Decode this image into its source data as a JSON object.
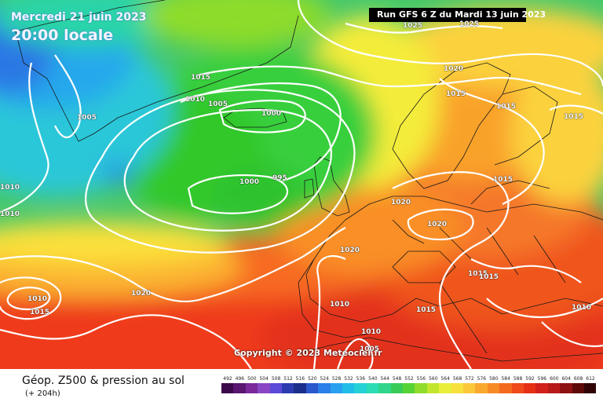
{
  "header": {
    "date": "Mercredi 21 juin 2023",
    "time": "20:00 locale",
    "run": "Run GFS 6 Z du Mardi 13 juin 2023"
  },
  "copyright": "Copyright © 2023 Meteociel.fr",
  "footer": {
    "title": "Géop. Z500 & pression au sol",
    "subtitle": "(+ 204h)"
  },
  "legend": {
    "ticks": [
      "492",
      "496",
      "500",
      "504",
      "508",
      "512",
      "516",
      "520",
      "524",
      "528",
      "532",
      "536",
      "540",
      "544",
      "548",
      "552",
      "556",
      "560",
      "564",
      "568",
      "572",
      "576",
      "580",
      "584",
      "588",
      "592",
      "596",
      "600",
      "604",
      "608",
      "612"
    ],
    "colors": [
      "#3c0a4a",
      "#5a1670",
      "#7a2a9a",
      "#8a46c4",
      "#5a4ad8",
      "#2d3bb0",
      "#1b2e8a",
      "#2a58cc",
      "#2c7fe8",
      "#2aa0f0",
      "#1fbde8",
      "#25d1d6",
      "#2bdcb4",
      "#2fd58a",
      "#38cc56",
      "#55d234",
      "#8fdc2c",
      "#c2e62e",
      "#e8ee3a",
      "#f8e03c",
      "#fbc83a",
      "#f9aa2e",
      "#f88a26",
      "#f46a1e",
      "#ef4a1a",
      "#e63016",
      "#d2211a",
      "#b81a1a",
      "#8e1212",
      "#5e0a0a",
      "#300404"
    ]
  },
  "isobars": [
    {
      "value": "1025",
      "lon": "left-top"
    },
    {
      "value": "1025"
    },
    {
      "value": "1020"
    },
    {
      "value": "1015"
    },
    {
      "value": "1015"
    },
    {
      "value": "1015"
    },
    {
      "value": "1015"
    },
    {
      "value": "1010"
    },
    {
      "value": "1005"
    },
    {
      "value": "1005"
    },
    {
      "value": "1000"
    },
    {
      "value": "1000"
    },
    {
      "value": "995"
    },
    {
      "value": "1010"
    },
    {
      "value": "1010"
    },
    {
      "value": "1020"
    },
    {
      "value": "1020"
    },
    {
      "value": "1020"
    },
    {
      "value": "1015"
    },
    {
      "value": "1015"
    },
    {
      "value": "1015"
    },
    {
      "value": "1010"
    },
    {
      "value": "1015"
    },
    {
      "value": "1020"
    },
    {
      "value": "1010"
    },
    {
      "value": "1015"
    },
    {
      "value": "1010"
    },
    {
      "value": "1005"
    },
    {
      "value": "1010"
    },
    {
      "value": "1015"
    },
    {
      "value": "1010"
    }
  ]
}
